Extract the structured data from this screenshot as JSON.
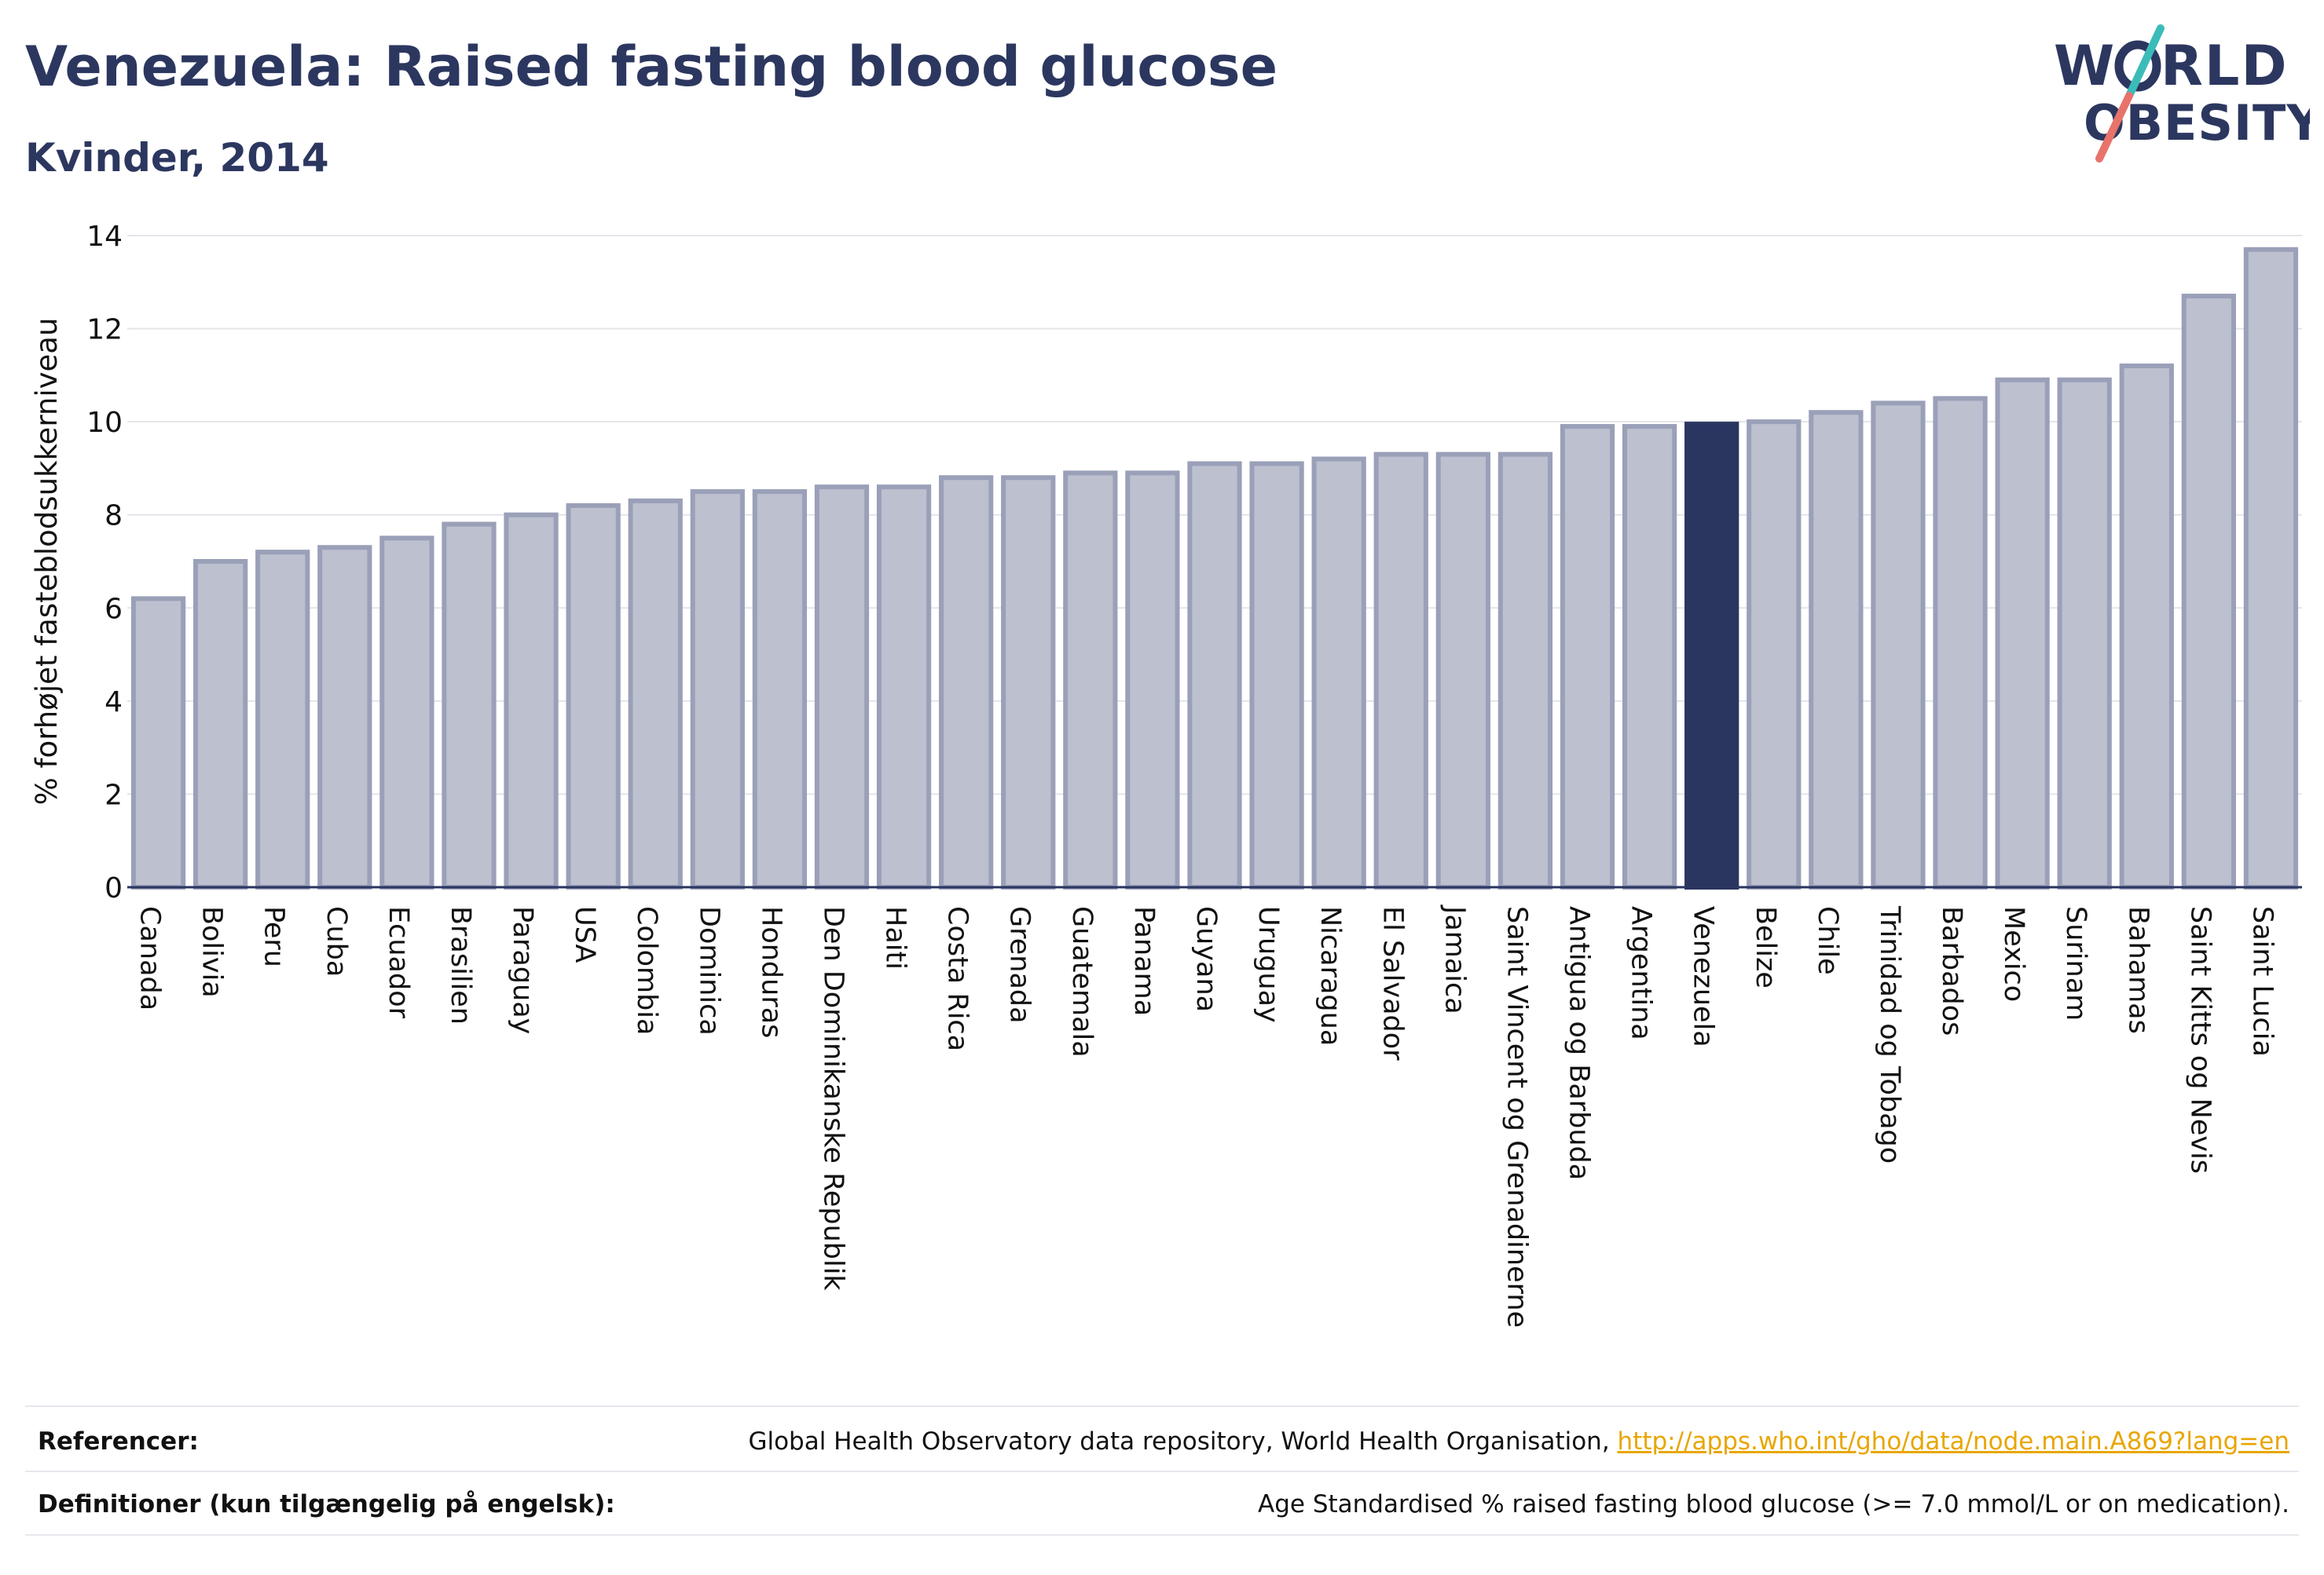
{
  "header": {
    "title": "Venezuela: Raised fasting blood glucose",
    "subtitle": "Kvinder, 2014"
  },
  "logo": {
    "line1": "W RLD",
    "line2": "OBESITY",
    "colors": {
      "text": "#2c3760",
      "slash_top": "#3bbcb9",
      "slash_bottom": "#e8736a"
    }
  },
  "chart_data": {
    "type": "bar",
    "ylabel": "% forhøjet fasteblodsukkerniveau",
    "ylim": [
      0,
      14
    ],
    "yticks": [
      0,
      2,
      4,
      6,
      8,
      10,
      12,
      14
    ],
    "grid": true,
    "highlight": "Venezuela",
    "colors": {
      "bar": "#bcc0cf",
      "bar_border": "#9aa0b8",
      "highlight": "#2a3560",
      "grid": "#e3e5ea",
      "axis": "#2a3560"
    },
    "categories": [
      "Canada",
      "Bolivia",
      "Peru",
      "Cuba",
      "Ecuador",
      "Brasilien",
      "Paraguay",
      "USA",
      "Colombia",
      "Dominica",
      "Honduras",
      "Den Dominikanske Republik",
      "Haiti",
      "Costa Rica",
      "Grenada",
      "Guatemala",
      "Panama",
      "Guyana",
      "Uruguay",
      "Nicaragua",
      "El Salvador",
      "Jamaica",
      "Saint Vincent og Grenadinerne",
      "Antigua og Barbuda",
      "Argentina",
      "Venezuela",
      "Belize",
      "Chile",
      "Trinidad og Tobago",
      "Barbados",
      "Mexico",
      "Surinam",
      "Bahamas",
      "Saint Kitts og Nevis",
      "Saint Lucia"
    ],
    "values": [
      6.2,
      7.0,
      7.2,
      7.3,
      7.5,
      7.8,
      8.0,
      8.2,
      8.3,
      8.5,
      8.5,
      8.6,
      8.6,
      8.8,
      8.8,
      8.9,
      8.9,
      9.1,
      9.1,
      9.2,
      9.3,
      9.3,
      9.3,
      9.9,
      9.9,
      9.95,
      10.0,
      10.2,
      10.4,
      10.5,
      10.9,
      10.9,
      11.2,
      12.7,
      13.7
    ]
  },
  "footer": {
    "references_label": "Referencer:",
    "references_text": "Global Health Observatory data repository, World Health Organisation, ",
    "references_link": "http://apps.who.int/gho/data/node.main.A869?lang=en",
    "definitions_label": "Definitioner (kun tilgængelig på engelsk):",
    "definitions_text": "Age Standardised % raised fasting blood glucose (>= 7.0 mmol/L or on medication)."
  }
}
